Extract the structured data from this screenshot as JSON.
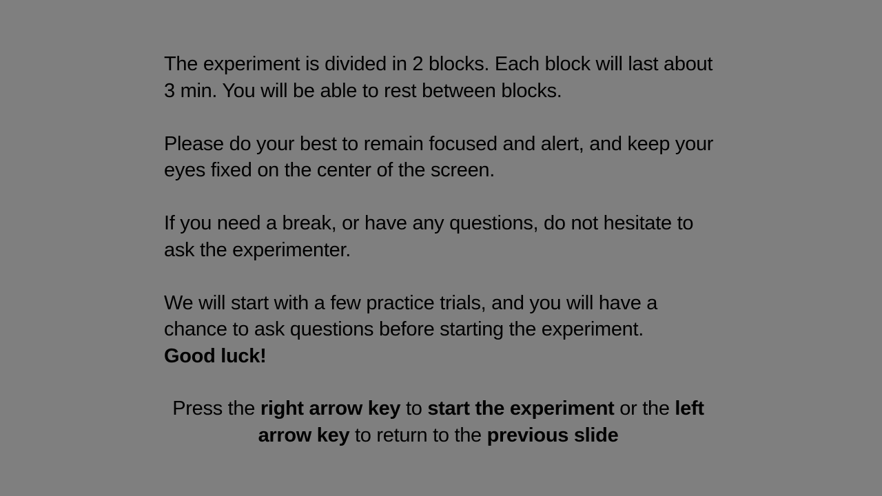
{
  "slide": {
    "background_color": "#7f7f7f",
    "text_color": "#000000",
    "paragraphs": [
      "The experiment is divided in 2 blocks. Each block will last about 3 min. You will be able to rest between blocks.",
      "Please do your best to remain focused and alert, and keep your eyes fixed on the center of the screen.",
      "If you need a break, or have any questions, do not hesitate to ask the experimenter.",
      "We will start with a few practice trials, and you will have a chance to ask questions before starting the experiment."
    ],
    "closing": "Good luck!",
    "instructions": {
      "part1": "Press the ",
      "right_key": "right arrow key",
      "part2": " to ",
      "start_action": "start the experiment",
      "part3": " or the ",
      "left_key": "left arrow key",
      "part4": " to return to the ",
      "back_action": "previous slide"
    }
  }
}
